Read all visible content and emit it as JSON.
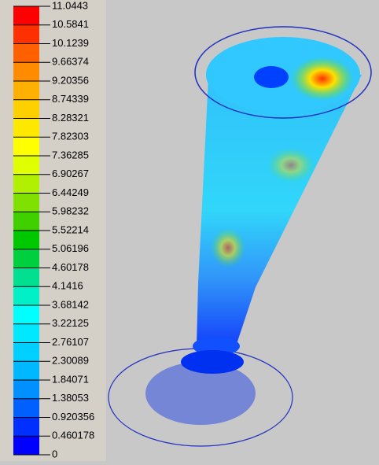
{
  "legend": {
    "ticks": [
      11.0443,
      10.5841,
      10.1239,
      9.66374,
      9.20356,
      8.74339,
      8.28321,
      7.82303,
      7.36285,
      6.90267,
      6.44249,
      5.98232,
      5.52214,
      5.06196,
      4.60178,
      4.1416,
      3.68142,
      3.22125,
      2.76107,
      2.30089,
      1.84071,
      1.38053,
      0.920356,
      0.460178,
      0
    ],
    "colors": [
      "#ff0000",
      "#ff3000",
      "#ff6000",
      "#ff8c00",
      "#ffb000",
      "#ffd000",
      "#ffe800",
      "#ffff00",
      "#e0ff00",
      "#b0f000",
      "#80e000",
      "#40d000",
      "#00c800",
      "#00d040",
      "#00e090",
      "#00f0c8",
      "#00ffff",
      "#00e8ff",
      "#00d0ff",
      "#00b8ff",
      "#0090ff",
      "#0060ff",
      "#0030ff",
      "#0000ff"
    ]
  }
}
